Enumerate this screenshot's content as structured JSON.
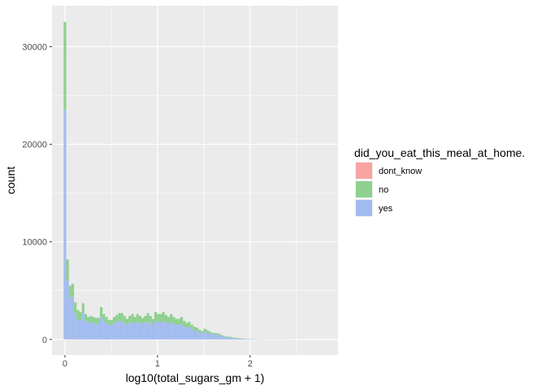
{
  "chart_data": {
    "type": "bar",
    "subtype": "stacked-histogram",
    "title": "",
    "xlabel": "log10(total_sugars_gm + 1)",
    "ylabel": "count",
    "xlim": [
      -0.14,
      2.95
    ],
    "ylim": [
      -1600,
      34200
    ],
    "x_ticks": [
      0,
      1,
      2
    ],
    "x_tick_labels": [
      "0",
      "1",
      "2"
    ],
    "y_ticks": [
      0,
      10000,
      20000,
      30000
    ],
    "y_tick_labels": [
      "0",
      "10000",
      "20000",
      "30000"
    ],
    "grid": true,
    "legend": {
      "title": "did_you_eat_this_meal_at_home.",
      "position": "right",
      "entries": [
        {
          "label": "dont_know",
          "color": "#F8A5A1"
        },
        {
          "label": "no",
          "color": "#8ED08E"
        },
        {
          "label": "yes",
          "color": "#A3BCF0"
        }
      ]
    },
    "bin_width": 0.028,
    "bin_start": -0.014,
    "x": [
      0.0,
      0.028,
      0.056,
      0.084,
      0.112,
      0.14,
      0.168,
      0.196,
      0.224,
      0.252,
      0.28,
      0.308,
      0.336,
      0.364,
      0.392,
      0.42,
      0.448,
      0.476,
      0.504,
      0.532,
      0.56,
      0.588,
      0.616,
      0.644,
      0.672,
      0.7,
      0.728,
      0.756,
      0.784,
      0.812,
      0.84,
      0.868,
      0.896,
      0.924,
      0.952,
      0.98,
      1.008,
      1.036,
      1.064,
      1.092,
      1.12,
      1.148,
      1.176,
      1.204,
      1.232,
      1.26,
      1.288,
      1.316,
      1.344,
      1.372,
      1.4,
      1.428,
      1.456,
      1.484,
      1.512,
      1.54,
      1.568,
      1.596,
      1.624,
      1.652,
      1.68,
      1.708,
      1.736,
      1.764,
      1.792,
      1.82,
      1.848,
      1.876,
      1.904,
      1.932,
      1.96,
      1.988,
      2.016,
      2.044,
      2.072,
      2.1,
      2.128,
      2.156,
      2.184,
      2.212,
      2.24,
      2.268,
      2.296,
      2.324,
      2.352,
      2.38,
      2.408,
      2.436,
      2.464,
      2.492
    ],
    "series": [
      {
        "name": "dont_know",
        "color": "#F8A5A1",
        "values": [
          30,
          8,
          6,
          5,
          4,
          3,
          3,
          3,
          3,
          2,
          2,
          2,
          2,
          2,
          2,
          2,
          2,
          2,
          2,
          2,
          2,
          2,
          2,
          2,
          2,
          2,
          2,
          2,
          2,
          2,
          2,
          2,
          2,
          2,
          2,
          2,
          2,
          2,
          2,
          2,
          2,
          2,
          2,
          2,
          2,
          2,
          2,
          2,
          2,
          2,
          2,
          1,
          1,
          1,
          1,
          1,
          1,
          1,
          1,
          1,
          1,
          1,
          1,
          1,
          1,
          1,
          1,
          1,
          1,
          1,
          0,
          0,
          0,
          0,
          0,
          0,
          0,
          0,
          0,
          0,
          0,
          0,
          0,
          0,
          0,
          0,
          0,
          0,
          0,
          0
        ]
      },
      {
        "name": "yes",
        "color": "#A3BCF0",
        "values": [
          23500,
          6000,
          4200,
          4400,
          2700,
          2000,
          2000,
          2700,
          1900,
          1700,
          1800,
          1700,
          1600,
          1600,
          2300,
          1900,
          1700,
          1500,
          1500,
          1700,
          1800,
          1900,
          1900,
          1700,
          1500,
          1700,
          1800,
          1600,
          1800,
          1700,
          1600,
          1700,
          1800,
          1700,
          1500,
          1900,
          1800,
          1800,
          1900,
          1700,
          1600,
          1800,
          1600,
          1500,
          1500,
          1600,
          1300,
          1200,
          1300,
          1100,
          900,
          900,
          700,
          600,
          800,
          700,
          600,
          500,
          500,
          500,
          400,
          300,
          250,
          200,
          200,
          150,
          120,
          100,
          80,
          60,
          50,
          40,
          35,
          30,
          25,
          20,
          18,
          15,
          12,
          10,
          8,
          7,
          6,
          5,
          4,
          3,
          3,
          2,
          2,
          1
        ]
      },
      {
        "name": "no",
        "color": "#8ED08E",
        "values": [
          9000,
          2200,
          1300,
          1300,
          1100,
          1000,
          800,
          1000,
          700,
          600,
          600,
          600,
          600,
          600,
          1000,
          700,
          600,
          500,
          500,
          600,
          700,
          800,
          800,
          700,
          600,
          700,
          800,
          700,
          800,
          700,
          600,
          700,
          900,
          700,
          600,
          900,
          800,
          800,
          900,
          800,
          700,
          800,
          700,
          600,
          600,
          700,
          600,
          500,
          500,
          400,
          400,
          300,
          300,
          250,
          300,
          250,
          200,
          180,
          160,
          140,
          120,
          100,
          90,
          80,
          70,
          60,
          50,
          40,
          30,
          25,
          20,
          15,
          12,
          10,
          8,
          6,
          5,
          4,
          3,
          3,
          2,
          2,
          1,
          1,
          1,
          1,
          0,
          0,
          0,
          0
        ]
      }
    ]
  }
}
